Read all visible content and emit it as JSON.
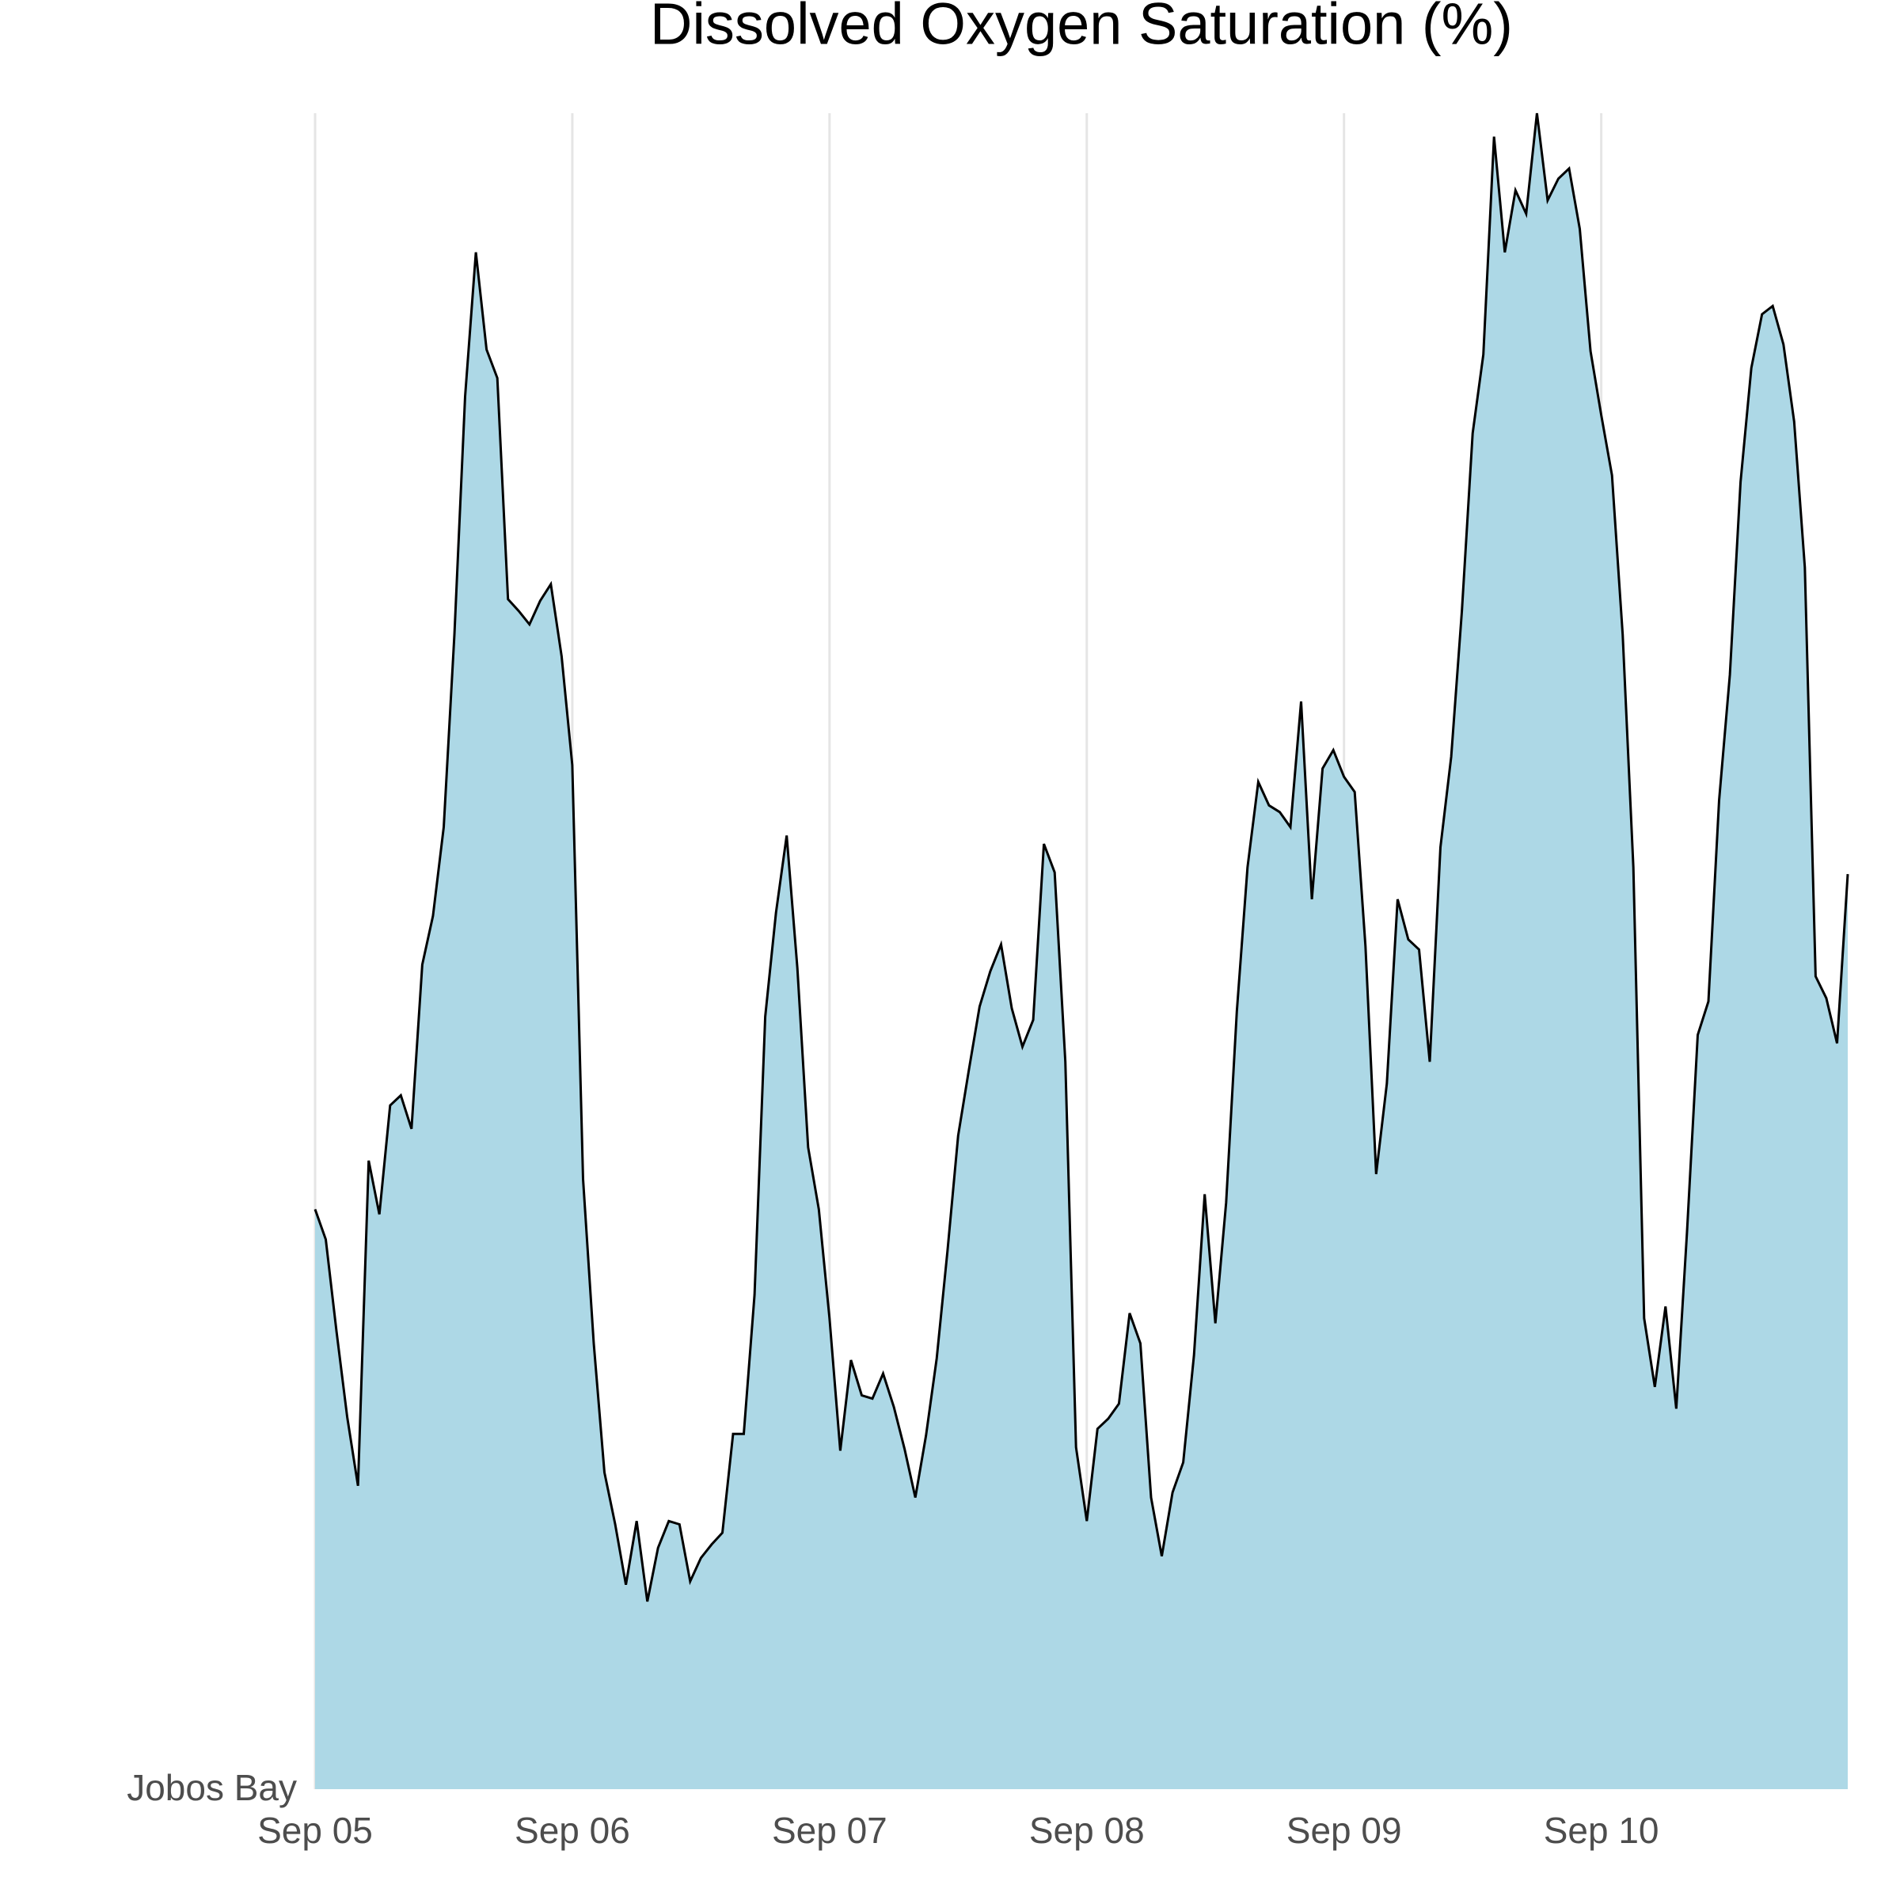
{
  "chart_data": {
    "type": "area",
    "title": "Dissolved Oxygen Saturation (%)",
    "x": [
      0,
      1,
      2,
      3,
      4,
      5,
      6,
      7,
      8,
      9,
      10,
      11,
      12,
      13,
      14,
      15,
      16,
      17,
      18,
      19,
      20,
      21,
      22,
      23,
      24,
      25,
      26,
      27,
      28,
      29,
      30,
      31,
      32,
      33,
      34,
      35,
      36,
      37,
      38,
      39,
      40,
      41,
      42,
      43,
      44,
      45,
      46,
      47,
      48,
      49,
      50,
      51,
      52,
      53,
      54,
      55,
      56,
      57,
      58,
      59,
      60,
      61,
      62,
      63,
      64,
      65,
      66,
      67,
      68,
      69,
      70,
      71,
      72,
      73,
      74,
      75,
      76,
      77,
      78,
      79,
      80,
      81,
      82,
      83,
      84,
      85,
      86,
      87,
      88,
      89,
      90,
      91,
      92,
      93,
      94,
      95,
      96,
      97,
      98,
      99,
      100,
      101,
      102,
      103,
      104,
      105,
      106,
      107,
      108,
      109,
      110,
      111,
      112,
      113,
      114,
      115,
      116,
      117,
      118,
      119,
      120,
      121,
      122,
      123,
      124,
      125,
      126,
      127,
      128,
      129,
      130,
      131,
      132,
      133,
      134,
      135,
      136,
      137,
      138,
      139,
      140,
      141,
      142,
      143
    ],
    "series": [
      {
        "name": "Jobos Bay",
        "color": "#add8e6",
        "line_color": "#000000",
        "values": [
          34.6,
          32.8,
          27.3,
          22.2,
          18.1,
          37.5,
          34.3,
          40.8,
          41.4,
          39.4,
          49.2,
          52.1,
          57.4,
          68.9,
          83.1,
          91.7,
          85.9,
          84.2,
          71.0,
          70.3,
          69.5,
          70.9,
          71.9,
          67.6,
          61.1,
          36.4,
          26.6,
          18.9,
          15.8,
          12.2,
          16.0,
          11.2,
          14.4,
          16.0,
          15.8,
          12.4,
          13.8,
          14.6,
          15.3,
          21.2,
          21.2,
          29.5,
          46.1,
          52.3,
          56.9,
          49.0,
          38.3,
          34.6,
          28.1,
          20.2,
          25.6,
          23.5,
          23.3,
          24.8,
          22.8,
          20.3,
          17.4,
          21.1,
          25.7,
          32.1,
          39.0,
          42.9,
          46.7,
          48.8,
          50.4,
          46.6,
          44.3,
          45.9,
          56.4,
          54.7,
          43.4,
          20.4,
          16.0,
          21.5,
          22.1,
          23.0,
          28.4,
          26.6,
          17.4,
          13.9,
          17.7,
          19.5,
          25.9,
          35.5,
          27.8,
          35.0,
          46.4,
          55.0,
          60.1,
          58.7,
          58.3,
          57.4,
          64.9,
          53.1,
          60.9,
          62.0,
          60.4,
          59.5,
          50.3,
          36.7,
          42.1,
          53.1,
          50.7,
          50.1,
          43.4,
          56.2,
          61.6,
          70.3,
          80.9,
          85.6,
          98.6,
          91.7,
          95.4,
          94.0,
          100.0,
          94.8,
          96.1,
          96.7,
          93.1,
          85.8,
          82.0,
          78.4,
          68.9,
          55.0,
          28.1,
          24.0,
          28.8,
          22.7,
          33.2,
          45.0,
          47.0,
          59.0,
          66.5,
          78.0,
          84.8,
          88.0,
          88.5,
          86.2,
          81.6,
          72.9,
          48.5,
          47.2,
          44.5,
          54.6
        ]
      }
    ],
    "xlim": [
      0,
      143
    ],
    "xticks": [
      {
        "value": 0,
        "label": "Sep 05"
      },
      {
        "value": 24,
        "label": "Sep 06"
      },
      {
        "value": 48,
        "label": "Sep 07"
      },
      {
        "value": 72,
        "label": "Sep 08"
      },
      {
        "value": 96,
        "label": "Sep 09"
      },
      {
        "value": 120,
        "label": "Sep 10"
      }
    ],
    "ylim": [
      0,
      100
    ],
    "grid": true,
    "grid_color": "#e5e5e5"
  }
}
